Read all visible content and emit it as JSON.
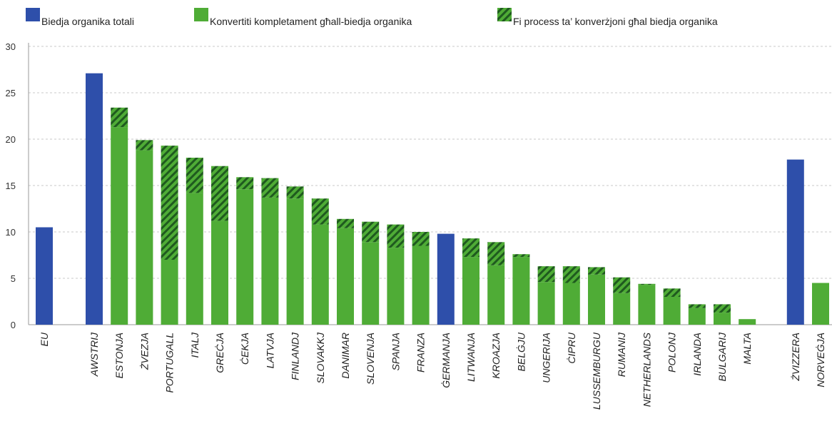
{
  "chart_data": {
    "type": "bar",
    "stacked": true,
    "ylim": [
      0,
      30
    ],
    "yticks": [
      0,
      5,
      10,
      15,
      20,
      25,
      30
    ],
    "grid": true,
    "legend_position": "top-left",
    "colors": {
      "total": "#2e4faa",
      "converted": "#4fac36",
      "conversion": "#2f7d2c",
      "hatch_stripe": "#1f5a1f"
    },
    "legend": [
      {
        "key": "total",
        "label": "Biedja organika totali"
      },
      {
        "key": "converted",
        "label": "Konvertiti kompletament għall-biedja organika"
      },
      {
        "key": "conversion",
        "label": "Fi process ta’ konverżjoni għal biedja organika"
      }
    ],
    "categories": [
      "EU",
      "AWSTRIJ",
      "ESTONJA",
      "ŻVEZJA",
      "PORTUGALL",
      "ITALJ",
      "GREĊJA",
      "ĊEKJA",
      "LATVJA",
      "FINLANDJ",
      "SLOVAKKJ",
      "DANIMAR",
      "SLOVENJA",
      "SPANJA",
      "FRANZA",
      "ĠERMANJA",
      "LITWANJA",
      "KROAZJA",
      "BELĠJU",
      "UNGERIJA",
      "ĊIPRU",
      "LUSSEMBURGU",
      "RUMANIJ",
      "NETHERLANDS",
      "POLONJ",
      "IRLANDA",
      "BULGARIJ",
      "MALTA",
      "ŻVIZZERA",
      "NORVEĠJA"
    ],
    "series": [
      {
        "name": "Biedja organika totali",
        "key": "total",
        "values": [
          10.5,
          27.1,
          null,
          null,
          null,
          null,
          null,
          null,
          null,
          null,
          null,
          null,
          null,
          null,
          null,
          9.8,
          null,
          null,
          null,
          null,
          null,
          null,
          null,
          null,
          null,
          null,
          null,
          null,
          17.8,
          null
        ]
      },
      {
        "name": "Konvertiti kompletament għall-biedja organika",
        "key": "converted",
        "values": [
          null,
          null,
          21.3,
          18.8,
          7.0,
          14.2,
          11.2,
          14.6,
          13.7,
          13.6,
          10.8,
          10.4,
          8.9,
          8.3,
          8.5,
          null,
          7.3,
          6.4,
          7.3,
          4.6,
          4.5,
          5.4,
          3.4,
          4.3,
          3.0,
          1.8,
          1.3,
          0.6,
          null,
          4.5
        ]
      },
      {
        "name": "Fi process ta’ konverżjoni għal biedja organika",
        "key": "conversion",
        "values": [
          null,
          null,
          2.1,
          1.1,
          12.3,
          3.8,
          5.9,
          1.3,
          2.1,
          1.3,
          2.8,
          1.0,
          2.2,
          2.5,
          1.5,
          null,
          2.0,
          2.5,
          0.3,
          1.7,
          1.8,
          0.8,
          1.7,
          0.1,
          0.9,
          0.4,
          0.9,
          0.0,
          null,
          0.0
        ]
      }
    ]
  }
}
